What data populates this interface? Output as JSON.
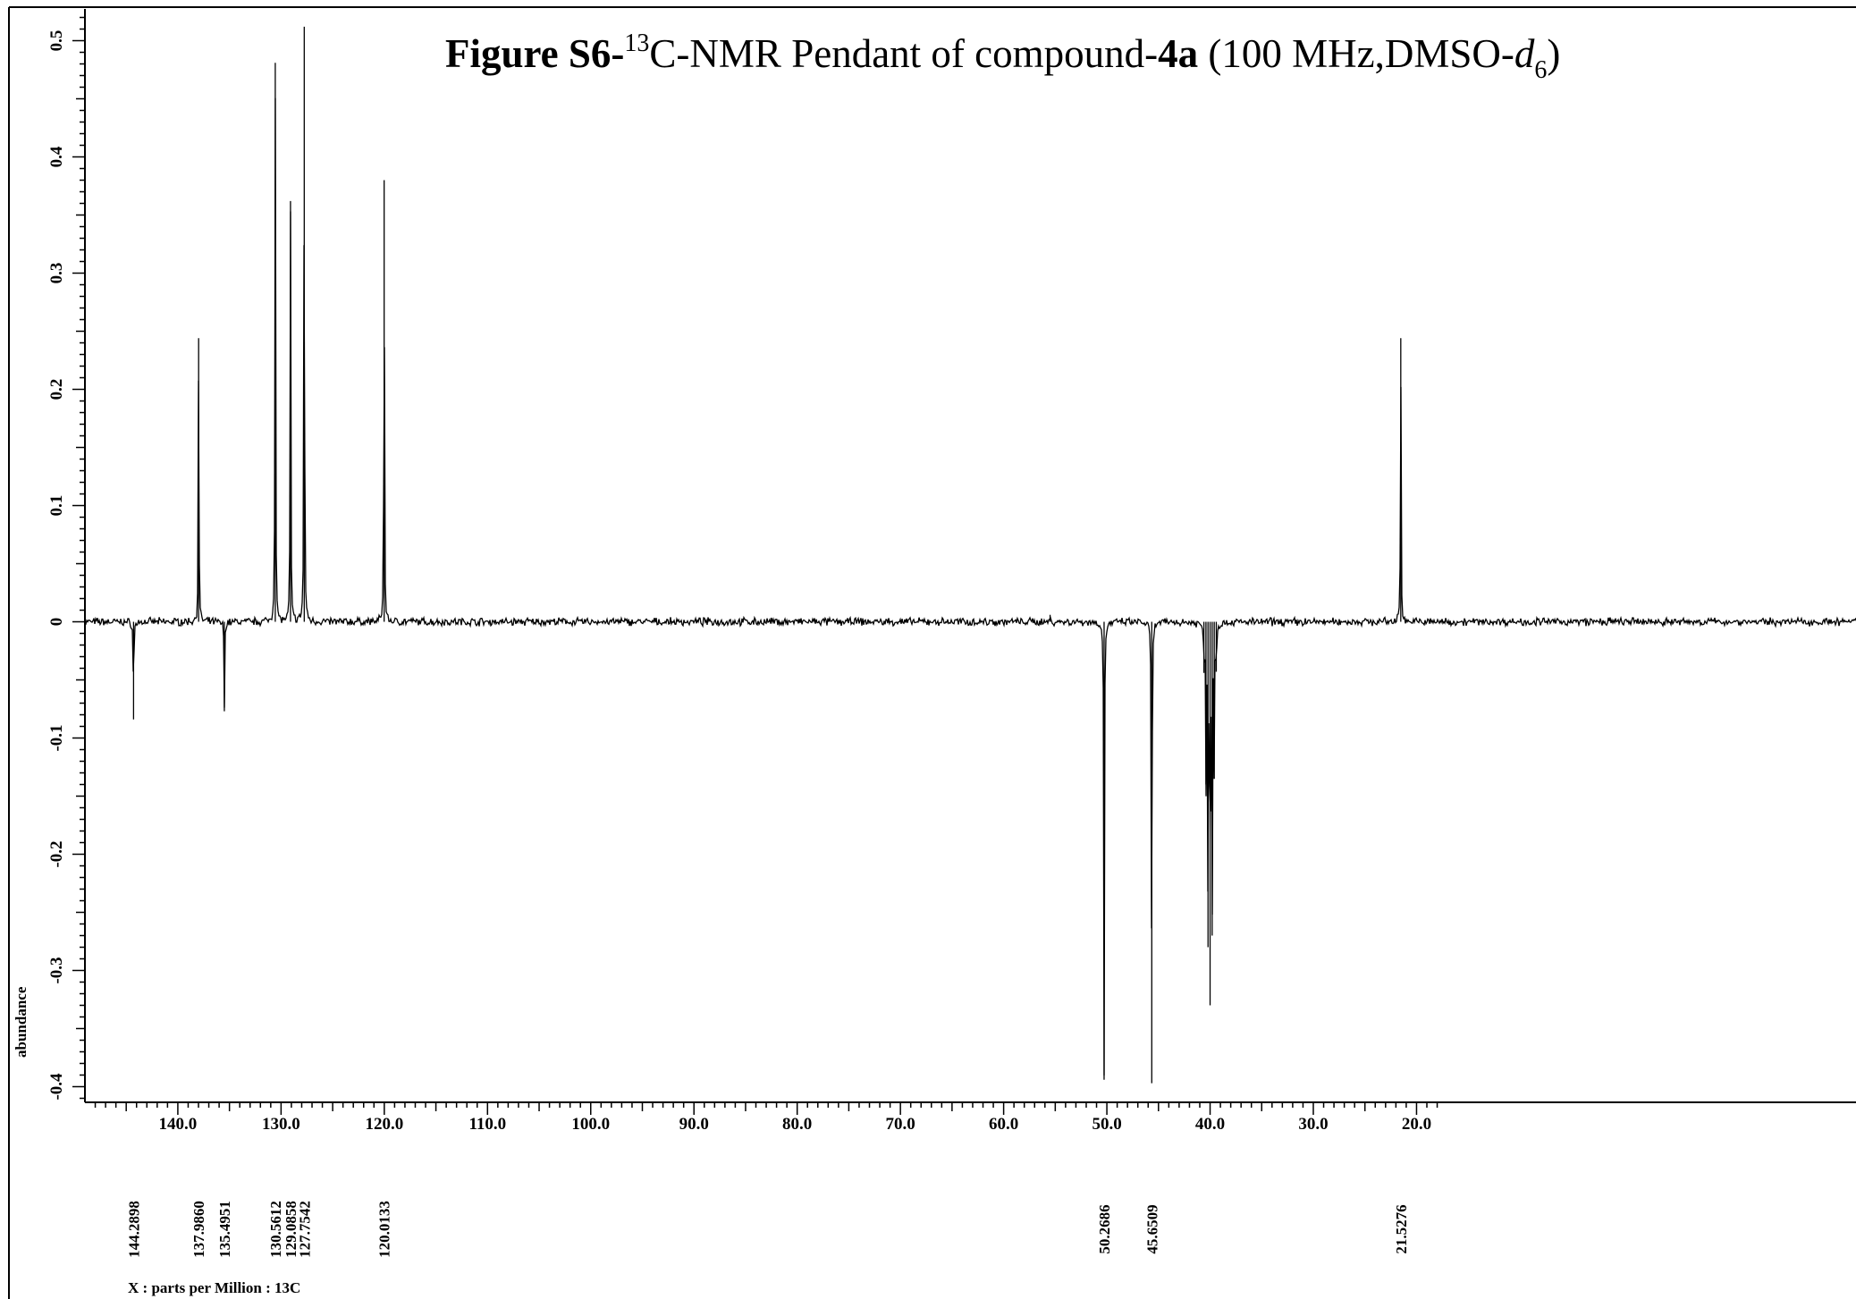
{
  "chart_data": {
    "type": "line",
    "title": {
      "prefix_bold": "Figure S6-",
      "superscript": "13",
      "middle": "C-NMR  Pendant of compound-",
      "compound_bold": "4a",
      "tail": " (100 MHz,DMSO-",
      "solvent_italic": "d",
      "solvent_sub": "6",
      "close": ")"
    },
    "xlabel": "X : parts per Million : 13C",
    "ylabel": "abundance",
    "xlim": [
      149.0,
      17.5
    ],
    "ylim": [
      -0.415,
      0.525
    ],
    "x_ticks": [
      "140.0",
      "130.0",
      "120.0",
      "110.0",
      "100.0",
      "90.0",
      "80.0",
      "70.0",
      "60.0",
      "50.0",
      "40.0",
      "30.0",
      "20.0"
    ],
    "y_ticks": [
      "0.5",
      "0.4",
      "0.3",
      "0.2",
      "0.1",
      "0",
      "-0.1",
      "-0.2",
      "-0.3",
      "-0.4"
    ],
    "peaks": [
      {
        "ppm": 144.2898,
        "intensity": -0.084
      },
      {
        "ppm": 137.986,
        "intensity": 0.244
      },
      {
        "ppm": 135.4951,
        "intensity": -0.077
      },
      {
        "ppm": 130.5612,
        "intensity": 0.481
      },
      {
        "ppm": 129.0858,
        "intensity": 0.362
      },
      {
        "ppm": 127.7542,
        "intensity": 0.512
      },
      {
        "ppm": 120.0133,
        "intensity": 0.38
      },
      {
        "ppm": 55.5,
        "intensity": 0.006
      },
      {
        "ppm": 50.2686,
        "intensity": -0.394
      },
      {
        "ppm": 45.6509,
        "intensity": -0.397
      },
      {
        "ppm": 40.6,
        "intensity": -0.044
      },
      {
        "ppm": 40.4,
        "intensity": -0.14
      },
      {
        "ppm": 40.2,
        "intensity": -0.28
      },
      {
        "ppm": 40.0,
        "intensity": -0.33
      },
      {
        "ppm": 39.8,
        "intensity": -0.27
      },
      {
        "ppm": 39.6,
        "intensity": -0.135
      },
      {
        "ppm": 39.4,
        "intensity": -0.043
      },
      {
        "ppm": 21.5276,
        "intensity": 0.244
      }
    ],
    "peak_labels": [
      "144.2898",
      "137.9860",
      "135.4951",
      "130.5612",
      "129.0858",
      "127.7542",
      "120.0133",
      "50.2686",
      "45.6509",
      "21.5276"
    ],
    "grid": false,
    "legend": "none"
  }
}
